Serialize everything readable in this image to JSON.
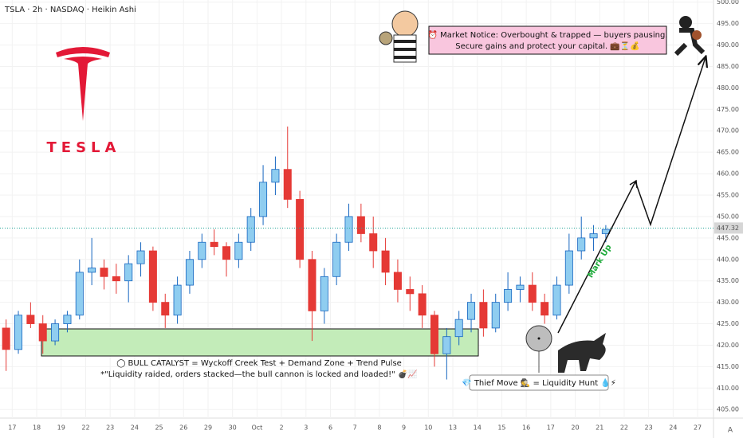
{
  "chart_data": {
    "type": "candlestick",
    "title": "TSLA · 2h · NASDAQ · Heikin Ashi",
    "brand": "TESLA",
    "notice": [
      "⏰ Market Notice: Overbought & trapped — buyers pausing.",
      "Secure gains and protect your capital. 💼⏳💰"
    ],
    "catalyst": "◯ BULL CATALYST = Wyckoff Creek Test + Demand Zone + Trend Pulse",
    "quote": "*\"Liquidity raided, orders stacked—the bull cannon is locked and loaded!\" 💣📈",
    "thief_note": "💎 Thief Move 🕵 = Liquidity Hunt 💧⚡",
    "arrow_label": "Mark Up",
    "scale_mode": "A",
    "up_color": "#8fcdf0",
    "down_color": "#e53935",
    "candles": {
      "open": [
        424,
        419,
        427,
        425,
        421,
        425,
        427,
        437,
        438,
        436,
        435,
        439,
        442,
        430,
        427,
        434,
        440,
        444,
        443,
        440,
        444,
        450,
        458,
        461,
        454,
        440,
        428,
        436,
        444,
        450,
        446,
        442,
        437,
        433,
        432,
        427,
        418,
        422,
        426,
        430,
        424,
        430,
        433,
        434,
        430,
        427,
        434,
        442,
        445,
        446
      ],
      "high": [
        426,
        428,
        430,
        427,
        426,
        428,
        440,
        445,
        440,
        439,
        441,
        444,
        443,
        432,
        436,
        442,
        446,
        447,
        444,
        446,
        452,
        462,
        464,
        471,
        456,
        442,
        438,
        446,
        453,
        453,
        450,
        445,
        440,
        436,
        434,
        428,
        424,
        428,
        432,
        433,
        432,
        437,
        436,
        437,
        432,
        436,
        446,
        450,
        448,
        448
      ],
      "low": [
        414,
        418,
        424,
        418,
        420,
        423,
        426,
        434,
        433,
        432,
        430,
        436,
        428,
        424,
        425,
        432,
        438,
        441,
        436,
        438,
        442,
        448,
        455,
        452,
        438,
        421,
        425,
        434,
        442,
        444,
        438,
        434,
        430,
        428,
        424,
        415,
        412,
        420,
        423,
        422,
        423,
        428,
        430,
        428,
        425,
        426,
        432,
        440,
        442,
        444
      ],
      "close": [
        419,
        427,
        425,
        421,
        425,
        427,
        437,
        438,
        436,
        435,
        439,
        442,
        430,
        427,
        434,
        440,
        444,
        443,
        440,
        444,
        450,
        458,
        461,
        454,
        440,
        428,
        436,
        444,
        450,
        446,
        442,
        437,
        433,
        432,
        427,
        418,
        422,
        426,
        430,
        424,
        430,
        433,
        434,
        430,
        427,
        434,
        442,
        445,
        446,
        447
      ]
    },
    "last_price": 447.32,
    "xlim": [
      -0.5,
      57.8
    ],
    "xticks": [
      {
        "value": 0.5,
        "label": "17"
      },
      {
        "value": 2.5,
        "label": "18"
      },
      {
        "value": 4.5,
        "label": "19"
      },
      {
        "value": 6.5,
        "label": "22"
      },
      {
        "value": 8.5,
        "label": "23"
      },
      {
        "value": 10.5,
        "label": "24"
      },
      {
        "value": 12.5,
        "label": "25"
      },
      {
        "value": 14.5,
        "label": "26"
      },
      {
        "value": 16.5,
        "label": "29"
      },
      {
        "value": 18.5,
        "label": "30"
      },
      {
        "value": 20.5,
        "label": "Oct"
      },
      {
        "value": 22.5,
        "label": "2"
      },
      {
        "value": 24.5,
        "label": "3"
      },
      {
        "value": 26.5,
        "label": "6"
      },
      {
        "value": 28.5,
        "label": "7"
      },
      {
        "value": 30.5,
        "label": "8"
      },
      {
        "value": 32.5,
        "label": "9"
      },
      {
        "value": 34.5,
        "label": "10"
      },
      {
        "value": 36.5,
        "label": "13"
      },
      {
        "value": 38.5,
        "label": "14"
      },
      {
        "value": 40.5,
        "label": "15"
      },
      {
        "value": 42.5,
        "label": "16"
      },
      {
        "value": 44.5,
        "label": "17"
      },
      {
        "value": 46.5,
        "label": "20"
      },
      {
        "value": 48.5,
        "label": "21"
      },
      {
        "value": 50.5,
        "label": "22"
      },
      {
        "value": 52.5,
        "label": "23"
      },
      {
        "value": 54.5,
        "label": "24"
      },
      {
        "value": 56.5,
        "label": "27"
      }
    ],
    "ylim": [
      403,
      500.5
    ],
    "yticks": [
      {
        "value": 405,
        "label": "405.00"
      },
      {
        "value": 410,
        "label": "410.00"
      },
      {
        "value": 415,
        "label": "415.00"
      },
      {
        "value": 420,
        "label": "420.00"
      },
      {
        "value": 425,
        "label": "425.00"
      },
      {
        "value": 430,
        "label": "430.00"
      },
      {
        "value": 435,
        "label": "435.00"
      },
      {
        "value": 440,
        "label": "440.00"
      },
      {
        "value": 445,
        "label": "445.00"
      },
      {
        "value": 450,
        "label": "450.00"
      },
      {
        "value": 455,
        "label": "455.00"
      },
      {
        "value": 460,
        "label": "460.00"
      },
      {
        "value": 465,
        "label": "465.00"
      },
      {
        "value": 470,
        "label": "470.00"
      },
      {
        "value": 475,
        "label": "475.00"
      },
      {
        "value": 480,
        "label": "480.00"
      },
      {
        "value": 485,
        "label": "485.00"
      },
      {
        "value": 490,
        "label": "490.00"
      },
      {
        "value": 495,
        "label": "495.00"
      },
      {
        "value": 500,
        "label": "500.00"
      }
    ]
  }
}
